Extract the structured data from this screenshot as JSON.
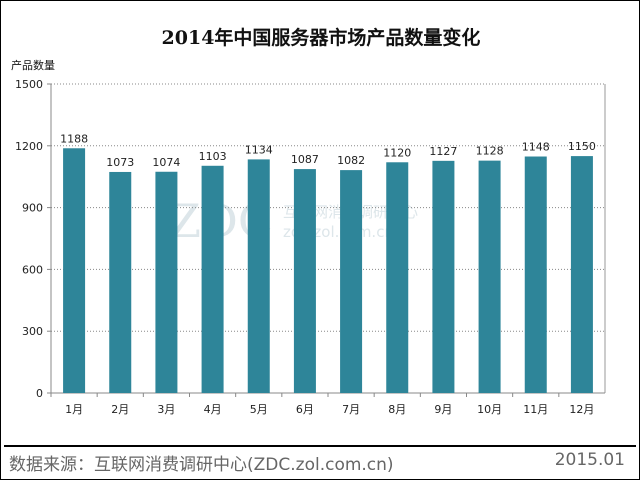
{
  "chart_data": {
    "type": "bar",
    "title": "2014年中国服务器市场产品数量变化",
    "ylabel": "产品数量",
    "xlabel": "",
    "categories": [
      "1月",
      "2月",
      "3月",
      "4月",
      "5月",
      "6月",
      "7月",
      "8月",
      "9月",
      "10月",
      "11月",
      "12月"
    ],
    "values": [
      1188,
      1073,
      1074,
      1103,
      1134,
      1087,
      1082,
      1120,
      1127,
      1128,
      1148,
      1150
    ],
    "ylim": [
      0,
      1500
    ],
    "yticks": [
      0,
      300,
      600,
      900,
      1200,
      1500
    ],
    "grid": true,
    "bar_color": "#2e8599"
  },
  "watermark": {
    "logo": "ZDC",
    "name": "互联网消费调研中心",
    "url": "zdc.zol.com.cn"
  },
  "footer": {
    "source": "数据来源：互联网消费调研中心(ZDC.zol.com.cn)",
    "date": "2015.01"
  }
}
